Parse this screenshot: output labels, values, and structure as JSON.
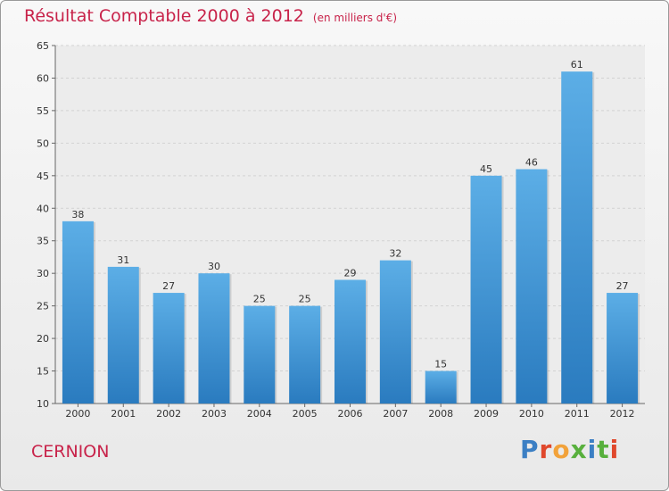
{
  "header": {
    "title": "Résultat Comptable 2000 à 2012",
    "subtitle": "(en milliers d'€)"
  },
  "footer": {
    "town": "CERNION",
    "brand": "Proxiti",
    "brand_colors": [
      "#3b7fc4",
      "#e0482c",
      "#f2a23a",
      "#58b03d",
      "#3b7fc4",
      "#58b03d",
      "#e0482c"
    ]
  },
  "chart_data": {
    "type": "bar",
    "title": "Résultat Comptable 2000 à 2012",
    "subtitle": "(en milliers d'€)",
    "categories": [
      "2000",
      "2001",
      "2002",
      "2003",
      "2004",
      "2005",
      "2006",
      "2007",
      "2008",
      "2009",
      "2010",
      "2011",
      "2012"
    ],
    "values": [
      38,
      31,
      27,
      30,
      25,
      25,
      29,
      32,
      15,
      45,
      46,
      61,
      27
    ],
    "ylim": [
      10,
      65
    ],
    "yticks": [
      10,
      15,
      20,
      25,
      30,
      35,
      40,
      45,
      50,
      55,
      60,
      65
    ],
    "grid": true,
    "bar_color_top": "#5caee6",
    "bar_color_bottom": "#2a7bbf",
    "title_color": "#c8234a"
  }
}
